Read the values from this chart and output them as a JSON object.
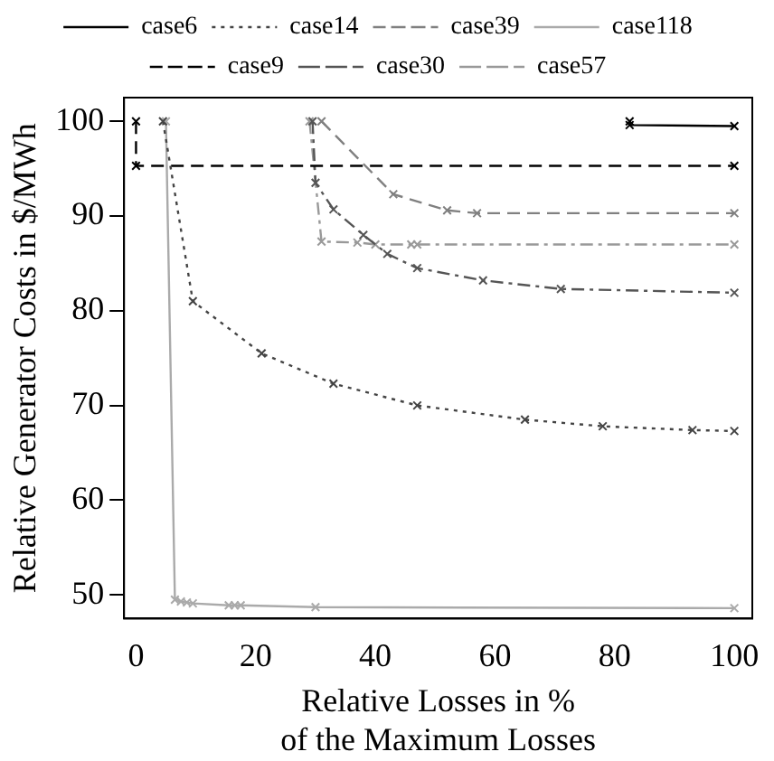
{
  "chart_data": {
    "type": "line",
    "xlabel": "Relative Losses in %\nof the Maximum Losses",
    "ylabel": "Relative Generator Costs in $/MWh",
    "xlim": [
      -2,
      103
    ],
    "ylim": [
      47.5,
      102.5
    ],
    "xticks": [
      0,
      20,
      40,
      60,
      80,
      100
    ],
    "yticks": [
      50,
      60,
      70,
      80,
      90,
      100
    ],
    "grid": false,
    "legend": "top",
    "marker": "cross",
    "series": [
      {
        "name": "case6",
        "color": "#000000",
        "line_style": "solid",
        "x": [
          82.5,
          82.5,
          100
        ],
        "values": [
          100,
          99.6,
          99.5
        ]
      },
      {
        "name": "case14",
        "color": "#444444",
        "line_style": "dotted",
        "x": [
          4.5,
          9.5,
          21,
          33,
          47,
          65,
          78,
          93,
          100
        ],
        "values": [
          100,
          81,
          75.5,
          72.3,
          70,
          68.5,
          67.8,
          67.4,
          67.3
        ]
      },
      {
        "name": "case39",
        "color": "#808080",
        "line_style": "dashed",
        "x": [
          31,
          43,
          52,
          57,
          100
        ],
        "values": [
          100,
          92.3,
          90.6,
          90.3,
          90.3
        ]
      },
      {
        "name": "case118",
        "color": "#aaaaaa",
        "line_style": "solid",
        "x": [
          5,
          6.5,
          7.5,
          8.5,
          9.5,
          15.5,
          16.5,
          17.5,
          30,
          100
        ],
        "values": [
          100,
          49.5,
          49.3,
          49.2,
          49.1,
          48.9,
          48.9,
          48.9,
          48.7,
          48.6
        ]
      },
      {
        "name": "case9",
        "color": "#000000",
        "line_style": "dashed",
        "x": [
          0,
          0,
          100
        ],
        "values": [
          100,
          95.3,
          95.3
        ]
      },
      {
        "name": "case30",
        "color": "#555555",
        "line_style": "dashdot",
        "x": [
          29.5,
          30,
          33,
          38,
          42,
          47,
          58,
          71,
          100
        ],
        "values": [
          100,
          93.5,
          90.7,
          88,
          86,
          84.5,
          83.2,
          82.3,
          81.9
        ]
      },
      {
        "name": "case57",
        "color": "#999999",
        "line_style": "dashdot",
        "x": [
          29,
          31,
          37,
          40,
          46,
          47,
          100
        ],
        "values": [
          100,
          87.3,
          87.2,
          87,
          87,
          87,
          87
        ]
      }
    ]
  }
}
